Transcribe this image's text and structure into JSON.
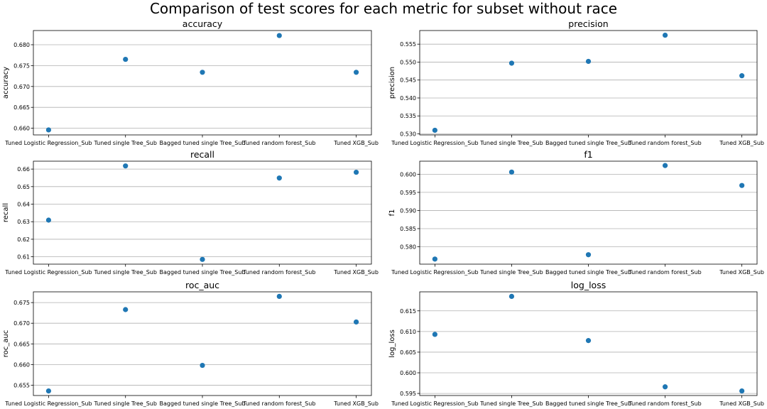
{
  "title": "Comparison of test scores for each metric for subset without race",
  "colors": {
    "point": "#1f77b4",
    "grid": "#b0b0b0"
  },
  "chart_data": [
    {
      "type": "scatter",
      "title": "accuracy",
      "ylabel": "accuracy",
      "categories": [
        "Tuned Logistic Regression_Sub",
        "Tuned single Tree_Sub",
        "Bagged tuned single Tree_Sub",
        "Tuned random forest_Sub",
        "Tuned XGB_Sub"
      ],
      "values": [
        0.6596,
        0.6765,
        0.6734,
        0.6822,
        0.6734
      ],
      "ylim": [
        0.6584,
        0.6834
      ],
      "yticks": [
        0.66,
        0.665,
        0.67,
        0.675,
        0.68
      ],
      "ytick_labels": [
        "0.660",
        "0.665",
        "0.670",
        "0.675",
        "0.680"
      ],
      "grid": "y"
    },
    {
      "type": "scatter",
      "title": "precision",
      "ylabel": "precision",
      "categories": [
        "Tuned Logistic Regression_Sub",
        "Tuned single Tree_Sub",
        "Bagged tuned single Tree_Sub",
        "Tuned random forest_Sub",
        "Tuned XGB_Sub"
      ],
      "values": [
        0.531,
        0.5497,
        0.5502,
        0.5575,
        0.5462
      ],
      "ylim": [
        0.5297,
        0.5588
      ],
      "yticks": [
        0.53,
        0.535,
        0.54,
        0.545,
        0.55,
        0.555
      ],
      "ytick_labels": [
        "0.530",
        "0.535",
        "0.540",
        "0.545",
        "0.550",
        "0.555"
      ],
      "grid": "y"
    },
    {
      "type": "scatter",
      "title": "recall",
      "ylabel": "recall",
      "categories": [
        "Tuned Logistic Regression_Sub",
        "Tuned single Tree_Sub",
        "Bagged tuned single Tree_Sub",
        "Tuned random forest_Sub",
        "Tuned XGB_Sub"
      ],
      "values": [
        0.6309,
        0.6618,
        0.6085,
        0.6549,
        0.6582
      ],
      "ylim": [
        0.6058,
        0.6645
      ],
      "yticks": [
        0.61,
        0.62,
        0.63,
        0.64,
        0.65,
        0.66
      ],
      "ytick_labels": [
        "0.61",
        "0.62",
        "0.63",
        "0.64",
        "0.65",
        "0.66"
      ],
      "grid": "y"
    },
    {
      "type": "scatter",
      "title": "f1",
      "ylabel": "f1",
      "categories": [
        "Tuned Logistic Regression_Sub",
        "Tuned single Tree_Sub",
        "Bagged tuned single Tree_Sub",
        "Tuned random forest_Sub",
        "Tuned XGB_Sub"
      ],
      "values": [
        0.5766,
        0.6006,
        0.5778,
        0.6024,
        0.5969
      ],
      "ylim": [
        0.5752,
        0.6036
      ],
      "yticks": [
        0.58,
        0.585,
        0.59,
        0.595,
        0.6
      ],
      "ytick_labels": [
        "0.580",
        "0.585",
        "0.590",
        "0.595",
        "0.600"
      ],
      "grid": "y"
    },
    {
      "type": "scatter",
      "title": "roc_auc",
      "ylabel": "roc_auc",
      "categories": [
        "Tuned Logistic Regression_Sub",
        "Tuned single Tree_Sub",
        "Bagged tuned single Tree_Sub",
        "Tuned random forest_Sub",
        "Tuned XGB_Sub"
      ],
      "values": [
        0.6536,
        0.6733,
        0.6598,
        0.6765,
        0.6703
      ],
      "ylim": [
        0.6525,
        0.6776
      ],
      "yticks": [
        0.655,
        0.66,
        0.665,
        0.67,
        0.675
      ],
      "ytick_labels": [
        "0.655",
        "0.660",
        "0.665",
        "0.670",
        "0.675"
      ],
      "grid": "y"
    },
    {
      "type": "scatter",
      "title": "log_loss",
      "ylabel": "log_loss",
      "categories": [
        "Tuned Logistic Regression_Sub",
        "Tuned single Tree_Sub",
        "Bagged tuned single Tree_Sub",
        "Tuned random forest_Sub",
        "Tuned XGB_Sub"
      ],
      "values": [
        0.6093,
        0.6185,
        0.6078,
        0.5966,
        0.5956
      ],
      "ylim": [
        0.5945,
        0.6196
      ],
      "yticks": [
        0.595,
        0.6,
        0.605,
        0.61,
        0.615
      ],
      "ytick_labels": [
        "0.595",
        "0.600",
        "0.605",
        "0.610",
        "0.615"
      ],
      "grid": "y"
    }
  ]
}
